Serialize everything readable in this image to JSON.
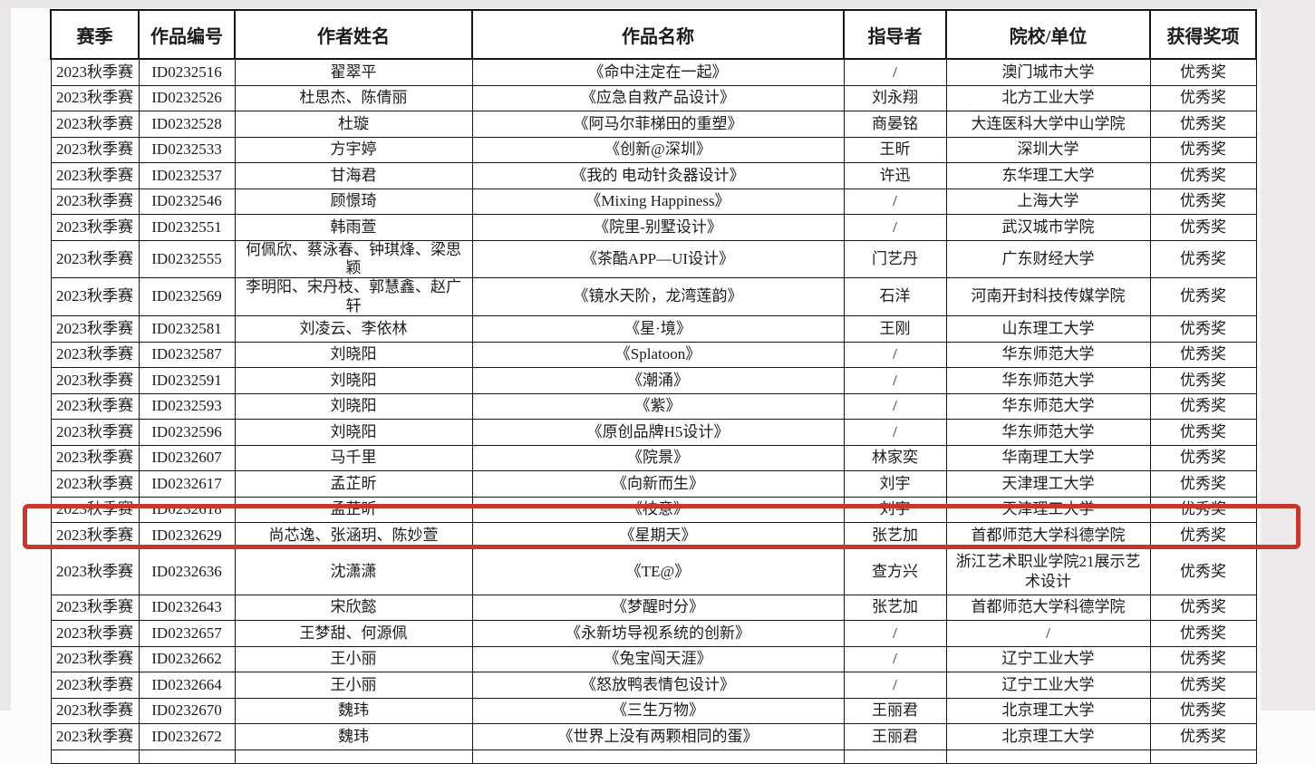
{
  "colors": {
    "highlight_red": "#c4392b",
    "margin_gray": "#e9e7e8",
    "table_border": "#161616"
  },
  "highlight": {
    "highlighted_row_id": "ID0232636"
  },
  "table": {
    "columns": [
      "赛季",
      "作品编号",
      "作者姓名",
      "作品名称",
      "指导者",
      "院校/单位",
      "获得奖项"
    ],
    "rows": [
      {
        "season": "2023秋季赛",
        "id": "ID0232516",
        "authors": "翟翠平",
        "title": "《命中注定在一起》",
        "advisor": "/",
        "institution": "澳门城市大学",
        "award": "优秀奖"
      },
      {
        "season": "2023秋季赛",
        "id": "ID0232526",
        "authors": "杜思杰、陈倩丽",
        "title": "《应急自救产品设计》",
        "advisor": "刘永翔",
        "institution": "北方工业大学",
        "award": "优秀奖"
      },
      {
        "season": "2023秋季赛",
        "id": "ID0232528",
        "authors": "杜璇",
        "title": "《阿马尔菲梯田的重塑》",
        "advisor": "商晏铭",
        "institution": "大连医科大学中山学院",
        "award": "优秀奖"
      },
      {
        "season": "2023秋季赛",
        "id": "ID0232533",
        "authors": "方宇婷",
        "title": "《创新@深圳》",
        "advisor": "王昕",
        "institution": "深圳大学",
        "award": "优秀奖"
      },
      {
        "season": "2023秋季赛",
        "id": "ID0232537",
        "authors": "甘海君",
        "title": "《我的 电动针灸器设计》",
        "advisor": "许迅",
        "institution": "东华理工大学",
        "award": "优秀奖"
      },
      {
        "season": "2023秋季赛",
        "id": "ID0232546",
        "authors": "顾憬琦",
        "title": "《Mixing Happiness》",
        "advisor": "/",
        "institution": "上海大学",
        "award": "优秀奖"
      },
      {
        "season": "2023秋季赛",
        "id": "ID0232551",
        "authors": "韩雨萱",
        "title": "《院里-别墅设计》",
        "advisor": "/",
        "institution": "武汉城市学院",
        "award": "优秀奖"
      },
      {
        "season": "2023秋季赛",
        "id": "ID0232555",
        "authors": "何佩欣、蔡泳春、钟琪烽、梁思颖",
        "title": "《茶酷APP—UI设计》",
        "advisor": "门艺丹",
        "institution": "广东财经大学",
        "award": "优秀奖"
      },
      {
        "season": "2023秋季赛",
        "id": "ID0232569",
        "authors": "李明阳、宋丹枝、郭慧鑫、赵广轩",
        "title": "《镜水天阶，龙湾莲韵》",
        "advisor": "石洋",
        "institution": "河南开封科技传媒学院",
        "award": "优秀奖"
      },
      {
        "season": "2023秋季赛",
        "id": "ID0232581",
        "authors": "刘凌云、李依林",
        "title": "《星·境》",
        "advisor": "王刚",
        "institution": "山东理工大学",
        "award": "优秀奖"
      },
      {
        "season": "2023秋季赛",
        "id": "ID0232587",
        "authors": "刘晓阳",
        "title": "《Splatoon》",
        "advisor": "/",
        "institution": "华东师范大学",
        "award": "优秀奖"
      },
      {
        "season": "2023秋季赛",
        "id": "ID0232591",
        "authors": "刘晓阳",
        "title": "《潮涌》",
        "advisor": "/",
        "institution": "华东师范大学",
        "award": "优秀奖"
      },
      {
        "season": "2023秋季赛",
        "id": "ID0232593",
        "authors": "刘晓阳",
        "title": "《紫》",
        "advisor": "/",
        "institution": "华东师范大学",
        "award": "优秀奖"
      },
      {
        "season": "2023秋季赛",
        "id": "ID0232596",
        "authors": "刘晓阳",
        "title": "《原创品牌H5设计》",
        "advisor": "/",
        "institution": "华东师范大学",
        "award": "优秀奖"
      },
      {
        "season": "2023秋季赛",
        "id": "ID0232607",
        "authors": "马千里",
        "title": "《院景》",
        "advisor": "林家奕",
        "institution": "华南理工大学",
        "award": "优秀奖"
      },
      {
        "season": "2023秋季赛",
        "id": "ID0232617",
        "authors": "孟芷昕",
        "title": "《向新而生》",
        "advisor": "刘宇",
        "institution": "天津理工大学",
        "award": "优秀奖"
      },
      {
        "season": "2023秋季赛",
        "id": "ID0232618",
        "authors": "孟芷昕",
        "title": "《枝意》",
        "advisor": "刘宇",
        "institution": "天津理工大学",
        "award": "优秀奖"
      },
      {
        "season": "2023秋季赛",
        "id": "ID0232629",
        "authors": "尚芯逸、张涵玥、陈妙萱",
        "title": "《星期天》",
        "advisor": "张艺加",
        "institution": "首都师范大学科德学院",
        "award": "优秀奖"
      },
      {
        "season": "2023秋季赛",
        "id": "ID0232636",
        "authors": "沈潇潇",
        "title": "《TE@》",
        "advisor": "查方兴",
        "institution": "浙江艺术职业学院21展示艺术设计",
        "award": "优秀奖",
        "highlighted": true
      },
      {
        "season": "2023秋季赛",
        "id": "ID0232643",
        "authors": "宋欣懿",
        "title": "《梦醒时分》",
        "advisor": "张艺加",
        "institution": "首都师范大学科德学院",
        "award": "优秀奖"
      },
      {
        "season": "2023秋季赛",
        "id": "ID0232657",
        "authors": "王梦甜、何源佩",
        "title": "《永新坊导视系统的创新》",
        "advisor": "/",
        "institution": "/",
        "award": "优秀奖"
      },
      {
        "season": "2023秋季赛",
        "id": "ID0232662",
        "authors": "王小丽",
        "title": "《兔宝闯天涯》",
        "advisor": "/",
        "institution": "辽宁工业大学",
        "award": "优秀奖"
      },
      {
        "season": "2023秋季赛",
        "id": "ID0232664",
        "authors": "王小丽",
        "title": "《怒放鸭表情包设计》",
        "advisor": "/",
        "institution": "辽宁工业大学",
        "award": "优秀奖"
      },
      {
        "season": "2023秋季赛",
        "id": "ID0232670",
        "authors": "魏玮",
        "title": "《三生万物》",
        "advisor": "王丽君",
        "institution": "北京理工大学",
        "award": "优秀奖"
      },
      {
        "season": "2023秋季赛",
        "id": "ID0232672",
        "authors": "魏玮",
        "title": "《世界上没有两颗相同的蛋》",
        "advisor": "王丽君",
        "institution": "北京理工大学",
        "award": "优秀奖"
      }
    ]
  }
}
